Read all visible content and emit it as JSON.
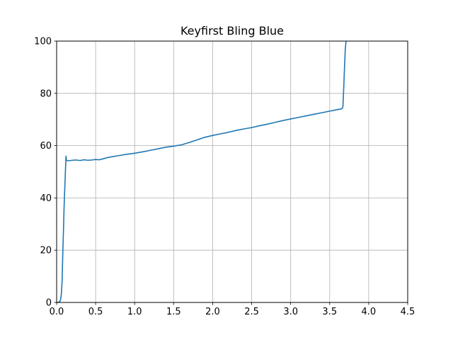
{
  "chart_data": {
    "type": "line",
    "title": "Keyfirst Bling Blue",
    "xlabel": "",
    "ylabel": "",
    "xlim": [
      0,
      4.5
    ],
    "ylim": [
      0,
      100
    ],
    "xticks": [
      0.0,
      0.5,
      1.0,
      1.5,
      2.0,
      2.5,
      3.0,
      3.5,
      4.0,
      4.5
    ],
    "xtick_labels": [
      "0.0",
      "0.5",
      "1.0",
      "1.5",
      "2.0",
      "2.5",
      "3.0",
      "3.5",
      "4.0",
      "4.5"
    ],
    "yticks": [
      0,
      20,
      40,
      60,
      80,
      100
    ],
    "ytick_labels": [
      "0",
      "20",
      "40",
      "60",
      "80",
      "100"
    ],
    "grid": true,
    "colors": {
      "line": "#1f77b4",
      "grid": "#b0b0b0",
      "axis": "#000000"
    },
    "series": [
      {
        "x": [
          0.0,
          0.02,
          0.04,
          0.05,
          0.06,
          0.07,
          0.075,
          0.08,
          0.085,
          0.09,
          0.095,
          0.1,
          0.105,
          0.11,
          0.115,
          0.12,
          0.125,
          0.13,
          0.15,
          0.2,
          0.25,
          0.3,
          0.35,
          0.4,
          0.45,
          0.5,
          0.55,
          0.6,
          0.65,
          0.7,
          0.8,
          0.9,
          1.0,
          1.1,
          1.2,
          1.3,
          1.4,
          1.5,
          1.6,
          1.7,
          1.8,
          1.9,
          2.0,
          2.1,
          2.2,
          2.3,
          2.4,
          2.5,
          2.6,
          2.7,
          2.8,
          2.9,
          3.0,
          3.1,
          3.2,
          3.3,
          3.4,
          3.5,
          3.55,
          3.6,
          3.64,
          3.66,
          3.67,
          3.68,
          3.69,
          3.7,
          3.71
        ],
        "y": [
          0.0,
          0.0,
          0.3,
          1.0,
          3.0,
          8.0,
          14.0,
          20.0,
          25.0,
          30.0,
          36.0,
          40.0,
          44.0,
          48.0,
          52.0,
          56.0,
          54.5,
          54.3,
          54.2,
          54.4,
          54.5,
          54.3,
          54.6,
          54.4,
          54.5,
          54.7,
          54.6,
          55.0,
          55.4,
          55.7,
          56.2,
          56.7,
          57.1,
          57.6,
          58.2,
          58.8,
          59.4,
          59.8,
          60.3,
          61.2,
          62.2,
          63.2,
          63.9,
          64.5,
          65.1,
          65.8,
          66.4,
          66.9,
          67.6,
          68.2,
          68.9,
          69.6,
          70.2,
          70.8,
          71.4,
          72.0,
          72.6,
          73.2,
          73.5,
          73.8,
          74.0,
          74.2,
          75.0,
          82.0,
          90.0,
          97.0,
          100.0
        ]
      }
    ]
  }
}
